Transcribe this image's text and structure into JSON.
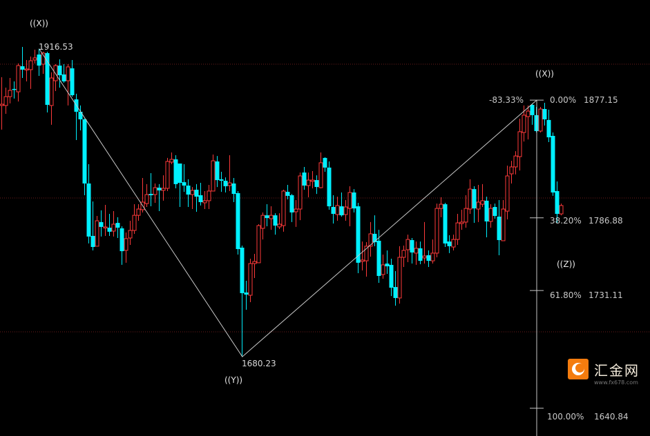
{
  "chart_data": {
    "type": "candlestick",
    "title": "",
    "colors": {
      "up": "#ff3a3a",
      "down": "#00f0ff",
      "background": "#000000",
      "grid": "#6e1c1c",
      "lines": "#c8c8c8"
    },
    "candle_columns": [
      "open",
      "high",
      "low",
      "close"
    ],
    "candles": [
      [
        1873.0,
        1894.7,
        1854.5,
        1874.0
      ],
      [
        1873.0,
        1886.7,
        1866.6,
        1879.8
      ],
      [
        1879.8,
        1894.1,
        1874.6,
        1884.6
      ],
      [
        1885.7,
        1891.5,
        1878.3,
        1885.1
      ],
      [
        1883.5,
        1905.2,
        1876.1,
        1903.6
      ],
      [
        1903.1,
        1917.9,
        1894.1,
        1900.5
      ],
      [
        1900.5,
        1907.9,
        1891.5,
        1901.0
      ],
      [
        1900.5,
        1910.5,
        1885.7,
        1907.3
      ],
      [
        1907.9,
        1915.8,
        1905.2,
        1909.5
      ],
      [
        1912.1,
        1916.5,
        1895.7,
        1903.6
      ],
      [
        1904.7,
        1914.2,
        1897.3,
        1913.2
      ],
      [
        1913.2,
        1914.2,
        1867.7,
        1873.5
      ],
      [
        1873.0,
        1898.4,
        1858.2,
        1894.1
      ],
      [
        1892.0,
        1904.7,
        1884.1,
        1903.6
      ],
      [
        1903.6,
        1908.4,
        1886.7,
        1896.2
      ],
      [
        1896.8,
        1904.7,
        1890.4,
        1891.5
      ],
      [
        1892.0,
        1904.7,
        1873.0,
        1902.6
      ],
      [
        1901.5,
        1907.9,
        1879.8,
        1880.9
      ],
      [
        1877.7,
        1882.0,
        1846.5,
        1868.2
      ],
      [
        1868.2,
        1873.0,
        1853.9,
        1862.4
      ],
      [
        1862.4,
        1862.9,
        1804.2,
        1813.2
      ],
      [
        1813.2,
        1828.0,
        1767.2,
        1772.5
      ],
      [
        1773.0,
        1799.4,
        1761.9,
        1764.5
      ],
      [
        1765.1,
        1788.3,
        1765.1,
        1784.6
      ],
      [
        1783.6,
        1792.6,
        1772.5,
        1779.9
      ],
      [
        1779.3,
        1796.8,
        1773.0,
        1779.9
      ],
      [
        1779.3,
        1789.9,
        1773.0,
        1776.2
      ],
      [
        1776.7,
        1792.0,
        1772.5,
        1782.0
      ],
      [
        1783.0,
        1787.3,
        1771.4,
        1779.3
      ],
      [
        1778.8,
        1780.4,
        1750.8,
        1761.3
      ],
      [
        1761.9,
        1775.6,
        1752.4,
        1770.9
      ],
      [
        1771.4,
        1784.6,
        1766.1,
        1777.2
      ],
      [
        1777.2,
        1797.3,
        1774.6,
        1788.8
      ],
      [
        1788.8,
        1797.3,
        1784.6,
        1793.6
      ],
      [
        1793.1,
        1817.4,
        1791.0,
        1798.9
      ],
      [
        1797.8,
        1812.7,
        1795.2,
        1804.7
      ],
      [
        1805.2,
        1821.1,
        1795.7,
        1804.2
      ],
      [
        1804.7,
        1813.2,
        1798.4,
        1810.0
      ],
      [
        1810.0,
        1812.7,
        1792.0,
        1807.9
      ],
      [
        1807.9,
        1819.5,
        1800.0,
        1809.5
      ],
      [
        1809.5,
        1832.8,
        1807.4,
        1830.1
      ],
      [
        1829.6,
        1837.0,
        1828.0,
        1831.7
      ],
      [
        1831.7,
        1834.9,
        1809.5,
        1812.7
      ],
      [
        1828.5,
        1828.5,
        1795.2,
        1813.7
      ],
      [
        1814.2,
        1828.0,
        1806.8,
        1811.6
      ],
      [
        1811.6,
        1816.4,
        1795.2,
        1804.7
      ],
      [
        1804.7,
        1810.5,
        1793.6,
        1807.9
      ],
      [
        1808.4,
        1812.7,
        1791.5,
        1803.1
      ],
      [
        1804.2,
        1813.7,
        1796.3,
        1798.9
      ],
      [
        1798.4,
        1807.4,
        1793.6,
        1800.0
      ],
      [
        1800.0,
        1812.1,
        1793.6,
        1807.4
      ],
      [
        1807.4,
        1835.4,
        1807.4,
        1830.6
      ],
      [
        1830.1,
        1834.3,
        1810.5,
        1815.8
      ],
      [
        1816.4,
        1822.2,
        1806.8,
        1815.3
      ],
      [
        1815.3,
        1817.9,
        1806.3,
        1811.1
      ],
      [
        1811.6,
        1834.9,
        1807.4,
        1813.7
      ],
      [
        1813.2,
        1817.4,
        1798.9,
        1805.2
      ],
      [
        1805.8,
        1807.4,
        1758.7,
        1762.9
      ],
      [
        1764.0,
        1765.6,
        1680.23,
        1729.1
      ],
      [
        1729.6,
        1738.6,
        1716.4,
        1728.0
      ],
      [
        1727.5,
        1755.5,
        1722.2,
        1751.8
      ],
      [
        1751.8,
        1759.2,
        1740.7,
        1753.4
      ],
      [
        1752.4,
        1782.0,
        1752.4,
        1780.9
      ],
      [
        1778.8,
        1791.0,
        1770.3,
        1788.8
      ],
      [
        1788.8,
        1797.3,
        1780.4,
        1786.7
      ],
      [
        1786.2,
        1795.7,
        1777.7,
        1788.8
      ],
      [
        1788.8,
        1790.4,
        1774.0,
        1780.9
      ],
      [
        1779.9,
        1790.4,
        1778.3,
        1782.0
      ],
      [
        1780.9,
        1808.4,
        1776.2,
        1807.4
      ],
      [
        1806.8,
        1812.1,
        1801.0,
        1803.7
      ],
      [
        1804.2,
        1805.2,
        1783.6,
        1791.0
      ],
      [
        1791.5,
        1800.5,
        1779.9,
        1793.6
      ],
      [
        1793.6,
        1821.6,
        1785.1,
        1819.0
      ],
      [
        1821.6,
        1825.9,
        1808.4,
        1811.6
      ],
      [
        1811.6,
        1821.6,
        1802.6,
        1815.8
      ],
      [
        1814.8,
        1822.7,
        1809.5,
        1815.8
      ],
      [
        1815.8,
        1819.5,
        1805.2,
        1810.5
      ],
      [
        1810.0,
        1837.0,
        1809.5,
        1829.1
      ],
      [
        1832.8,
        1833.3,
        1822.2,
        1825.4
      ],
      [
        1825.4,
        1830.1,
        1793.1,
        1795.7
      ],
      [
        1795.2,
        1804.2,
        1782.5,
        1789.9
      ],
      [
        1789.4,
        1803.1,
        1784.6,
        1796.3
      ],
      [
        1795.7,
        1806.3,
        1787.8,
        1788.8
      ],
      [
        1789.4,
        1800.5,
        1784.6,
        1795.2
      ],
      [
        1794.1,
        1811.1,
        1780.4,
        1806.3
      ],
      [
        1806.3,
        1808.9,
        1791.0,
        1794.1
      ],
      [
        1795.7,
        1798.4,
        1744.4,
        1752.4
      ],
      [
        1753.4,
        1768.7,
        1746.5,
        1754.5
      ],
      [
        1753.9,
        1768.2,
        1741.8,
        1765.1
      ],
      [
        1765.1,
        1783.6,
        1757.1,
        1774.6
      ],
      [
        1774.6,
        1788.8,
        1765.1,
        1768.2
      ],
      [
        1769.3,
        1777.7,
        1737.0,
        1742.3
      ],
      [
        1743.4,
        1758.7,
        1740.2,
        1750.8
      ],
      [
        1751.8,
        1761.9,
        1743.9,
        1749.7
      ],
      [
        1750.8,
        1755.5,
        1726.9,
        1733.3
      ],
      [
        1733.8,
        1746.0,
        1719.5,
        1725.4
      ],
      [
        1725.4,
        1765.1,
        1721.1,
        1756.6
      ],
      [
        1756.6,
        1765.6,
        1749.2,
        1761.9
      ],
      [
        1762.4,
        1774.0,
        1752.9,
        1770.3
      ],
      [
        1769.8,
        1771.4,
        1751.8,
        1760.3
      ],
      [
        1759.8,
        1768.7,
        1750.8,
        1763.5
      ],
      [
        1763.5,
        1768.7,
        1751.3,
        1753.9
      ],
      [
        1756.1,
        1783.6,
        1751.8,
        1757.6
      ],
      [
        1758.2,
        1761.9,
        1749.2,
        1753.9
      ],
      [
        1753.9,
        1770.3,
        1751.8,
        1759.8
      ],
      [
        1759.8,
        1797.8,
        1756.6,
        1794.1
      ],
      [
        1794.1,
        1802.6,
        1787.3,
        1797.3
      ],
      [
        1797.3,
        1798.4,
        1764.5,
        1767.2
      ],
      [
        1768.7,
        1773.5,
        1759.8,
        1765.1
      ],
      [
        1764.5,
        1774.0,
        1761.9,
        1770.3
      ],
      [
        1770.3,
        1789.9,
        1766.1,
        1783.0
      ],
      [
        1782.5,
        1793.1,
        1777.7,
        1783.6
      ],
      [
        1783.6,
        1804.2,
        1779.3,
        1794.1
      ],
      [
        1793.6,
        1816.4,
        1789.9,
        1808.9
      ],
      [
        1808.9,
        1811.1,
        1783.0,
        1794.1
      ],
      [
        1793.6,
        1812.1,
        1783.6,
        1798.9
      ],
      [
        1797.3,
        1812.7,
        1795.2,
        1800.0
      ],
      [
        1800.0,
        1803.1,
        1771.9,
        1784.1
      ],
      [
        1784.1,
        1797.3,
        1779.3,
        1794.1
      ],
      [
        1795.2,
        1797.8,
        1786.2,
        1788.3
      ],
      [
        1787.8,
        1800.5,
        1758.2,
        1769.8
      ],
      [
        1769.3,
        1800.5,
        1769.3,
        1793.6
      ],
      [
        1792.0,
        1826.9,
        1785.7,
        1819.0
      ],
      [
        1820.6,
        1830.6,
        1813.2,
        1825.9
      ],
      [
        1825.9,
        1838.0,
        1820.1,
        1834.3
      ],
      [
        1833.8,
        1862.9,
        1823.2,
        1852.9
      ],
      [
        1852.3,
        1873.0,
        1845.4,
        1865.6
      ],
      [
        1864.5,
        1873.0,
        1847.0,
        1868.7
      ],
      [
        1873.5,
        1874.6,
        1858.2,
        1865.6
      ],
      [
        1865.6,
        1871.9,
        1852.3,
        1853.4
      ],
      [
        1853.4,
        1871.9,
        1852.3,
        1870.3
      ],
      [
        1870.3,
        1875.1,
        1857.6,
        1862.4
      ],
      [
        1861.9,
        1869.8,
        1844.9,
        1848.6
      ],
      [
        1849.7,
        1852.3,
        1803.7,
        1806.3
      ],
      [
        1807.4,
        1814.8,
        1783.0,
        1789.9
      ],
      [
        1789.9,
        1797.8,
        1788.8,
        1796.3
      ]
    ],
    "wave_points": [
      {
        "label": "((X))",
        "candle": 9,
        "price": 1916.53,
        "price_label": "1916.53"
      },
      {
        "label": "((Y))",
        "candle": 58,
        "price": 1680.23,
        "price_label": "1680.23"
      },
      {
        "label": "((X))",
        "candle": 129,
        "price": 1877.15
      }
    ],
    "projection_label": "((Z))",
    "extension_label": "-83.33%",
    "fibonacci": [
      {
        "percent": "0.00%",
        "value": "1877.15",
        "price": 1877.15
      },
      {
        "percent": "38.20%",
        "value": "1786.88",
        "price": 1786.88
      },
      {
        "percent": "61.80%",
        "value": "1731.11",
        "price": 1731.11
      },
      {
        "percent": "100.00%",
        "value": "1640.84",
        "price": 1640.84
      }
    ],
    "grid": true
  },
  "watermark": {
    "name": "汇金网",
    "url": "www.fx678.com"
  }
}
